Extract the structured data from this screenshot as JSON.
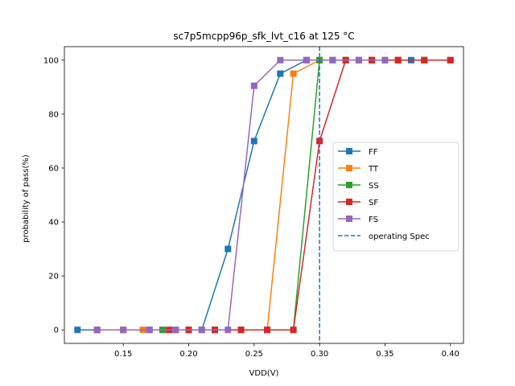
{
  "chart_data": {
    "type": "line",
    "title": "sc7p5mcpp96p_sfk_lvt_c16 at 125 °C",
    "xlabel": "VDD(V)",
    "ylabel": "probability of pass(%)",
    "xlim": [
      0.105,
      0.41
    ],
    "ylim": [
      -5,
      105
    ],
    "xticks": [
      0.15,
      0.2,
      0.25,
      0.3,
      0.35,
      0.4
    ],
    "xtick_labels": [
      "0.15",
      "0.20",
      "0.25",
      "0.30",
      "0.35",
      "0.40"
    ],
    "yticks": [
      0,
      20,
      40,
      60,
      80,
      100
    ],
    "ytick_labels": [
      "0",
      "20",
      "40",
      "60",
      "80",
      "100"
    ],
    "grid": false,
    "legend_position": "center-right",
    "series": [
      {
        "name": "FF",
        "color": "#1f77b4",
        "marker": "square",
        "x": [
          0.115,
          0.13,
          0.15,
          0.17,
          0.19,
          0.21,
          0.23,
          0.25,
          0.27,
          0.29,
          0.31,
          0.33,
          0.35,
          0.37
        ],
        "y": [
          0,
          0,
          0,
          0,
          0,
          0,
          30,
          70,
          95,
          100,
          100,
          100,
          100,
          100
        ]
      },
      {
        "name": "TT",
        "color": "#ff7f0e",
        "marker": "square",
        "x": [
          0.13,
          0.15,
          0.165,
          0.18,
          0.2,
          0.22,
          0.24,
          0.26,
          0.28,
          0.3,
          0.32,
          0.34,
          0.36,
          0.38
        ],
        "y": [
          0,
          0,
          0,
          0,
          0,
          0,
          0,
          0,
          95,
          100,
          100,
          100,
          100,
          100
        ]
      },
      {
        "name": "SS",
        "color": "#2ca02c",
        "marker": "square",
        "x": [
          0.18,
          0.2,
          0.22,
          0.24,
          0.26,
          0.28,
          0.3,
          0.32,
          0.34,
          0.36,
          0.38,
          0.4
        ],
        "y": [
          0,
          0,
          0,
          0,
          0,
          0,
          100,
          100,
          100,
          100,
          100,
          100
        ]
      },
      {
        "name": "SF",
        "color": "#d62728",
        "marker": "square",
        "x": [
          0.185,
          0.2,
          0.22,
          0.24,
          0.26,
          0.28,
          0.3,
          0.32,
          0.34,
          0.36,
          0.38,
          0.4
        ],
        "y": [
          0,
          0,
          0,
          0,
          0,
          0,
          70,
          100,
          100,
          100,
          100,
          100
        ]
      },
      {
        "name": "FS",
        "color": "#9467bd",
        "marker": "square",
        "x": [
          0.13,
          0.15,
          0.17,
          0.19,
          0.21,
          0.23,
          0.25,
          0.27,
          0.29,
          0.31,
          0.33,
          0.35
        ],
        "y": [
          0,
          0,
          0,
          0,
          0,
          0,
          90.5,
          100,
          100,
          100,
          100,
          100
        ]
      }
    ],
    "reference_line": {
      "name": "operating Spec",
      "orientation": "vertical",
      "x": 0.3,
      "color": "#1f77b4",
      "style": "dashed"
    }
  }
}
